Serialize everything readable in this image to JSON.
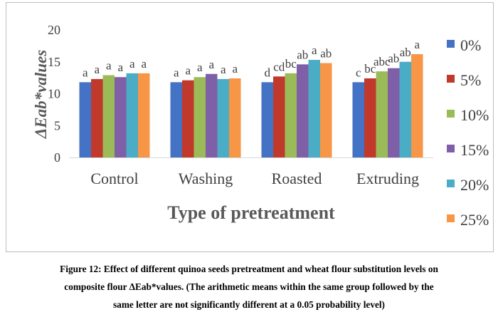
{
  "chart_data": {
    "type": "bar",
    "title": "",
    "xlabel": "Type of pretreatment",
    "ylabel": "ΔEab*values",
    "categories": [
      "Control",
      "Washing",
      "Roasted",
      "Extruding"
    ],
    "ylim": [
      0,
      20
    ],
    "yticks": [
      0,
      5,
      10,
      15,
      20
    ],
    "grid": false,
    "legend_position": "right",
    "series": [
      {
        "name": "0%",
        "color": "#4472c4",
        "values": [
          11.8,
          11.8,
          11.8,
          11.8
        ],
        "labels": [
          "a",
          "a",
          "d",
          "c"
        ]
      },
      {
        "name": "5%",
        "color": "#c0392b",
        "values": [
          12.3,
          12.1,
          12.7,
          12.4
        ],
        "labels": [
          "a",
          "a",
          "cd",
          "bc"
        ]
      },
      {
        "name": "10%",
        "color": "#9bbb59",
        "values": [
          12.9,
          12.6,
          13.2,
          13.5
        ],
        "labels": [
          "a",
          "a",
          "bc",
          "abc"
        ]
      },
      {
        "name": "15%",
        "color": "#7f5fa8",
        "values": [
          12.6,
          13.1,
          14.6,
          14.0
        ],
        "labels": [
          "a",
          "a",
          "ab",
          "ab"
        ]
      },
      {
        "name": "20%",
        "color": "#4bacc6",
        "values": [
          13.2,
          12.3,
          15.3,
          15.0
        ],
        "labels": [
          "a",
          "a",
          "a",
          "ab"
        ]
      },
      {
        "name": "25%",
        "color": "#f79646",
        "values": [
          13.2,
          12.4,
          14.8,
          16.2
        ],
        "labels": [
          "a",
          "a",
          "ab",
          "a"
        ]
      }
    ]
  },
  "caption": {
    "line1": "Figure 12: Effect of different quinoa seeds pretreatment and wheat flour substitution levels on",
    "line2": "composite flour ΔEab*values. (The arithmetic means within the same group followed by the",
    "line3": "same letter are not significantly different at a 0.05 probability level)"
  }
}
